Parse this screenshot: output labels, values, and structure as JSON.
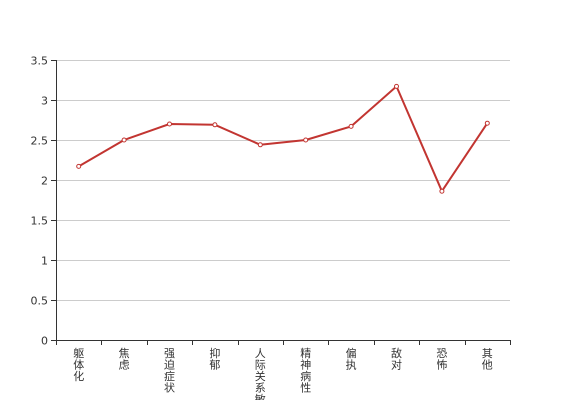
{
  "chart_data": {
    "type": "line",
    "categories": [
      "躯体化",
      "焦虑",
      "强迫症状",
      "抑郁",
      "人际关系敏感",
      "精神病性",
      "偏执",
      "敌对",
      "恐怖",
      "其他"
    ],
    "series": [
      {
        "values": [
          2.17,
          2.5,
          2.7,
          2.69,
          2.44,
          2.5,
          2.67,
          3.17,
          1.86,
          2.71
        ],
        "color": "#c23531"
      }
    ],
    "yticks": [
      "0",
      "0.5",
      "1",
      "1.5",
      "2",
      "2.5",
      "3",
      "3.5"
    ],
    "ylim": [
      0,
      3.5
    ],
    "grid": true,
    "legend": "none",
    "title": "",
    "xlabel": "",
    "ylabel": ""
  }
}
